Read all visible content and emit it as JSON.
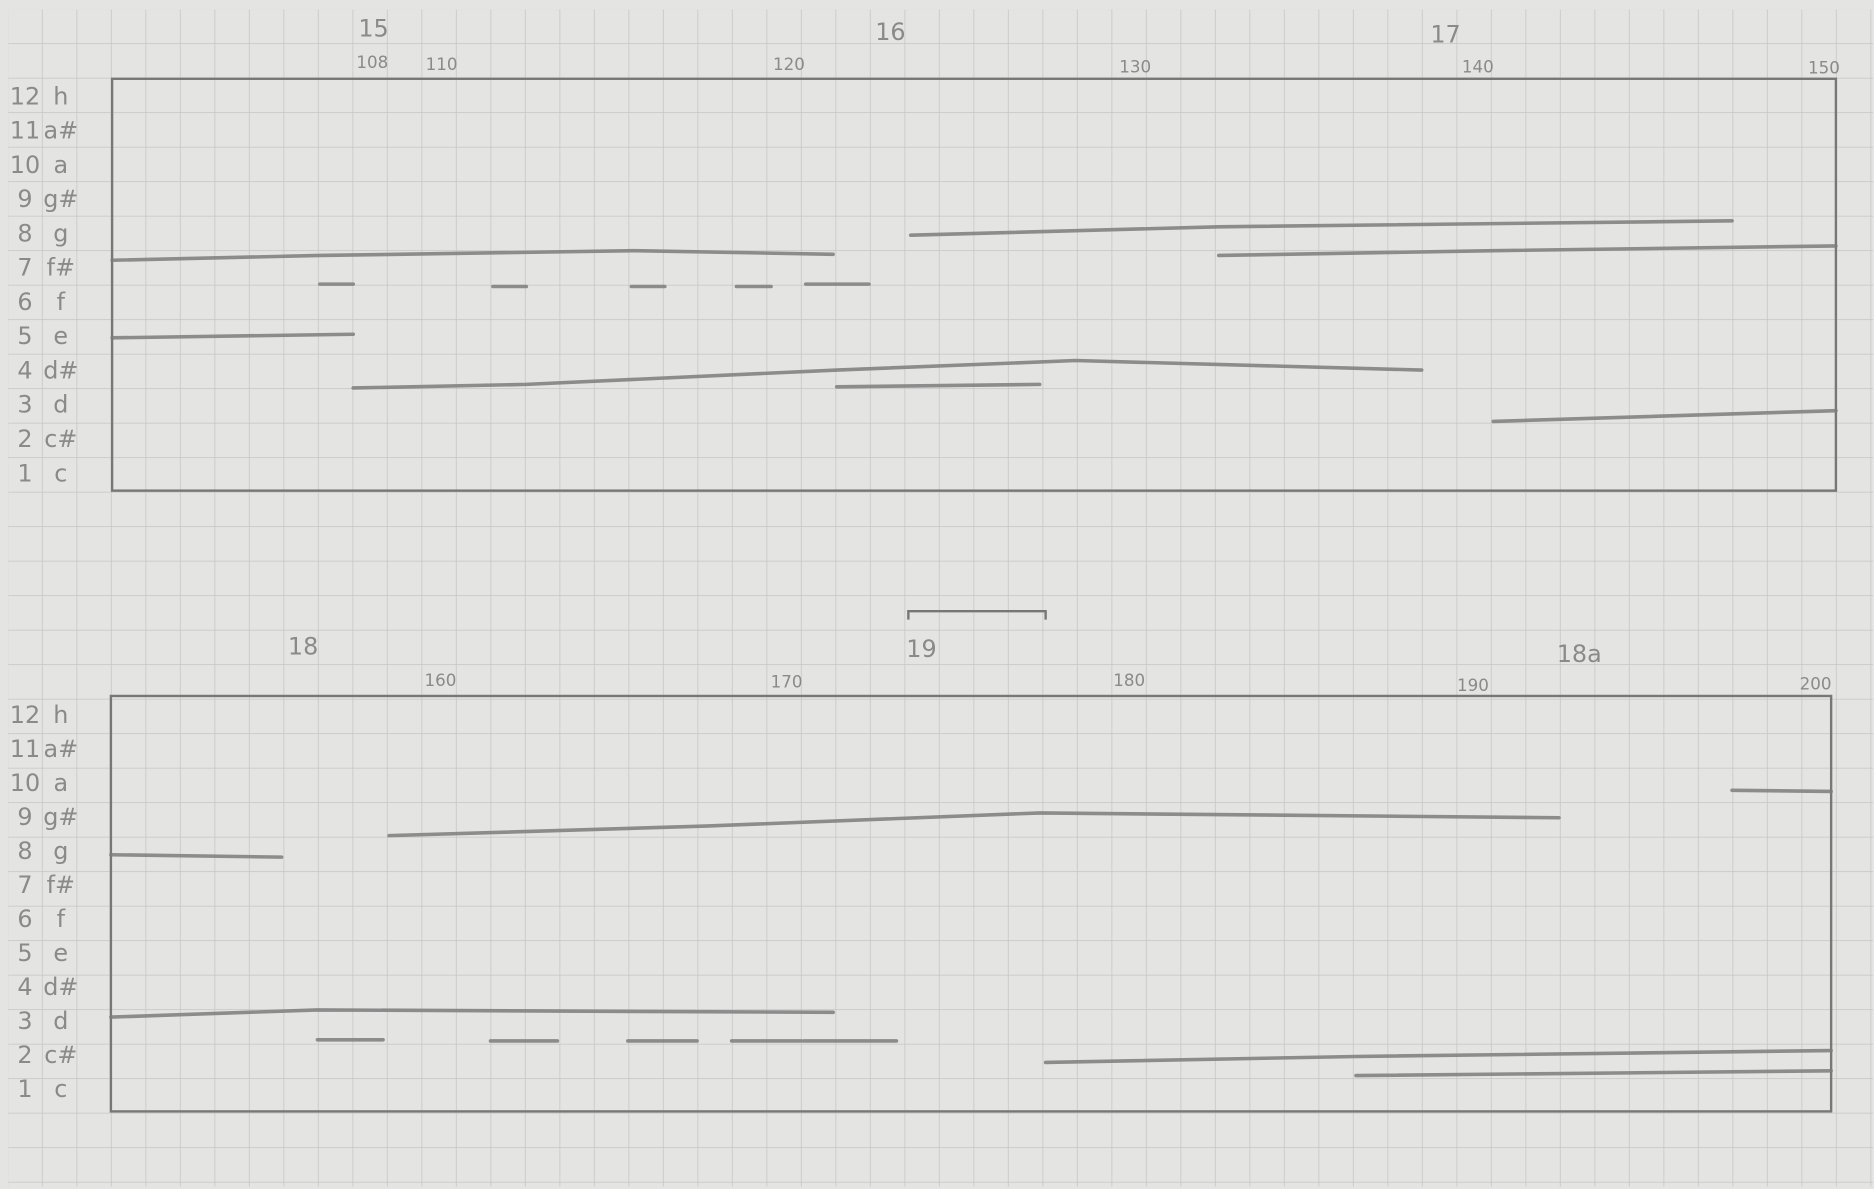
{
  "panels": [
    {
      "sections": [
        "15",
        "16",
        "17"
      ],
      "measures": [
        "108",
        "110",
        "120",
        "130",
        "140",
        "150"
      ],
      "rows": [
        {
          "num": "12",
          "note": "h"
        },
        {
          "num": "11",
          "note": "a#"
        },
        {
          "num": "10",
          "note": "a"
        },
        {
          "num": "9",
          "note": "g#"
        },
        {
          "num": "8",
          "note": "g"
        },
        {
          "num": "7",
          "note": "f#"
        },
        {
          "num": "6",
          "note": "f"
        },
        {
          "num": "5",
          "note": "e"
        },
        {
          "num": "4",
          "note": "d#"
        },
        {
          "num": "3",
          "note": "d"
        },
        {
          "num": "2",
          "note": "c#"
        },
        {
          "num": "1",
          "note": "c"
        }
      ]
    },
    {
      "sections": [
        "18",
        "19",
        "18a"
      ],
      "measures": [
        "160",
        "170",
        "180",
        "190",
        "200"
      ],
      "rows": [
        {
          "num": "12",
          "note": "h"
        },
        {
          "num": "11",
          "note": "a#"
        },
        {
          "num": "10",
          "note": "a"
        },
        {
          "num": "9",
          "note": "g#"
        },
        {
          "num": "8",
          "note": "g"
        },
        {
          "num": "7",
          "note": "f#"
        },
        {
          "num": "6",
          "note": "f"
        },
        {
          "num": "5",
          "note": "e"
        },
        {
          "num": "4",
          "note": "d#"
        },
        {
          "num": "3",
          "note": "d"
        },
        {
          "num": "2",
          "note": "c#"
        },
        {
          "num": "1",
          "note": "c"
        }
      ]
    }
  ]
}
